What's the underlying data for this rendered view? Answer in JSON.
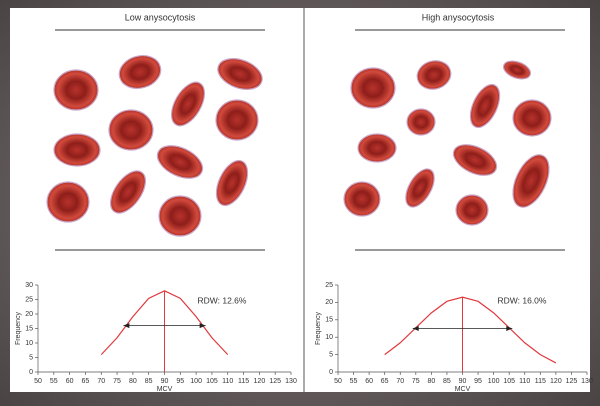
{
  "chart_data": [
    {
      "type": "line",
      "title": "Low anysocytosis",
      "annotation": "RDW: 12.6%",
      "x_label": "MCV",
      "y_label": "Frequency",
      "x": [
        70,
        75,
        80,
        85,
        90,
        95,
        100,
        105,
        110
      ],
      "series": [
        {
          "color": "#e0393e",
          "values": [
            6.0,
            11.8,
            19.1,
            25.4,
            28,
            25.4,
            19.1,
            11.8,
            6.0
          ]
        }
      ],
      "arrow_x": [
        77,
        103
      ],
      "arrow_y": 16,
      "xlim": [
        50,
        130
      ],
      "xticks": [
        50,
        55,
        60,
        65,
        70,
        75,
        80,
        85,
        90,
        95,
        100,
        105,
        110,
        115,
        120,
        125,
        130
      ],
      "ylim": [
        0,
        30
      ],
      "yticks": [
        0,
        5,
        10,
        15,
        20,
        25,
        30
      ],
      "grid": false
    },
    {
      "type": "line",
      "title": "High anysocytosis",
      "annotation": "RDW: 16.0%",
      "x_label": "MCV",
      "y_label": "Frequency",
      "x": [
        65,
        70,
        75,
        80,
        85,
        90,
        95,
        100,
        105,
        110,
        115,
        120
      ],
      "series": [
        {
          "color": "#e0393e",
          "values": [
            5.0,
            8.4,
            12.7,
            17.0,
            20.3,
            21.5,
            20.3,
            17.0,
            12.7,
            8.4,
            5.0,
            2.6
          ]
        }
      ],
      "arrow_x": [
        74,
        106
      ],
      "arrow_y": 12.5,
      "xlim": [
        50,
        130
      ],
      "xticks": [
        50,
        55,
        60,
        65,
        70,
        75,
        80,
        85,
        90,
        95,
        100,
        105,
        110,
        115,
        120,
        125,
        130
      ],
      "ylim": [
        0,
        25
      ],
      "yticks": [
        0,
        5,
        10,
        15,
        20,
        25
      ],
      "grid": false
    }
  ]
}
